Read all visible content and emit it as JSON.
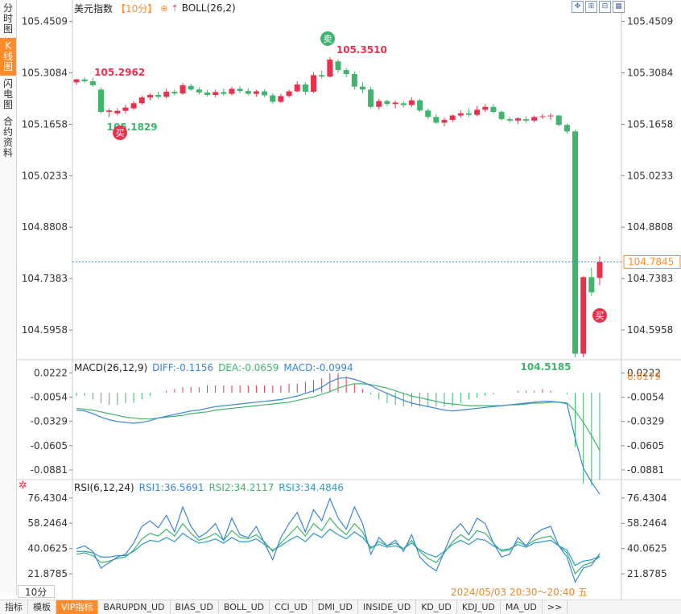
{
  "sidebar": {
    "tabs": [
      {
        "label": "分时图",
        "active": false
      },
      {
        "label": "K线图",
        "active": true
      },
      {
        "label": "闪电图",
        "active": false
      },
      {
        "label": "合约资料",
        "active": false
      }
    ]
  },
  "header": {
    "symbol": "美元指数",
    "period": "【10分】",
    "indicator": "BOLL(26,2)",
    "add_icon": "circle-plus-icon",
    "indicator_icon": "arrow-up-icon",
    "tools": [
      "crosshair-icon",
      "zoom-in-icon",
      "zoom-out-icon",
      "tile-icon"
    ]
  },
  "colors": {
    "up": "#e8324d",
    "down": "#3fb56d",
    "diff": "#3a86d6",
    "dea": "#3fb56d",
    "rsi1": "#3a86d6",
    "rsi2": "#3fb56d",
    "rsi3": "#2a9cc4",
    "accent": "#ff8a2a"
  },
  "price_axis": {
    "ticks": [
      "105.4509",
      "105.3084",
      "105.1658",
      "105.0233",
      "104.8808",
      "104.7383",
      "104.5958"
    ],
    "current": "104.7845"
  },
  "macd": {
    "title": "MACD(26,12,9)",
    "diff": "DIFF:-0.1156",
    "dea": "DEA:-0.0659",
    "macd": "MACD:-0.0994",
    "ticks": [
      "0.0222",
      "-0.0054",
      "-0.0329",
      "-0.0605",
      "-0.0881"
    ],
    "marker": "0.0179"
  },
  "rsi": {
    "title": "RSI(6,12,24)",
    "rsi1": "RSI1:36.5691",
    "rsi2": "RSI2:34.2117",
    "rsi3": "RSI3:34.4846",
    "ticks": [
      "76.4304",
      "58.2464",
      "40.0625",
      "21.8785"
    ],
    "settings_icon": "gear-icon"
  },
  "chart_data": [
    {
      "type": "candlestick",
      "title": "美元指数【10分】",
      "ylim": [
        104.52,
        105.47
      ],
      "annotations": {
        "high_label": "105.3510",
        "low_label": "104.5185",
        "left_high": "105.2962",
        "left_low": "105.1829",
        "buy_badge": "买",
        "sell_badge": "卖"
      },
      "candles": [
        [
          105.282,
          105.292,
          105.275,
          105.29
        ],
        [
          105.29,
          105.296,
          105.28,
          105.285
        ],
        [
          105.285,
          105.295,
          105.27,
          105.274
        ],
        [
          105.262,
          105.268,
          105.196,
          105.2
        ],
        [
          105.2,
          105.21,
          105.185,
          105.204
        ],
        [
          105.196,
          105.21,
          105.19,
          105.203
        ],
        [
          105.203,
          105.22,
          105.195,
          105.212
        ],
        [
          105.21,
          105.23,
          105.205,
          105.224
        ],
        [
          105.224,
          105.245,
          105.22,
          105.24
        ],
        [
          105.24,
          105.252,
          105.232,
          105.247
        ],
        [
          105.247,
          105.256,
          105.236,
          105.242
        ],
        [
          105.242,
          105.264,
          105.238,
          105.256
        ],
        [
          105.256,
          105.262,
          105.246,
          105.251
        ],
        [
          105.251,
          105.28,
          105.248,
          105.274
        ],
        [
          105.272,
          105.278,
          105.258,
          105.262
        ],
        [
          105.262,
          105.268,
          105.248,
          105.254
        ],
        [
          105.254,
          105.262,
          105.242,
          105.247
        ],
        [
          105.247,
          105.262,
          105.24,
          105.255
        ],
        [
          105.255,
          105.265,
          105.245,
          105.25
        ],
        [
          105.25,
          105.27,
          105.246,
          105.264
        ],
        [
          105.264,
          105.272,
          105.252,
          105.258
        ],
        [
          105.258,
          105.266,
          105.246,
          105.25
        ],
        [
          105.25,
          105.262,
          105.242,
          105.257
        ],
        [
          105.257,
          105.263,
          105.241,
          105.246
        ],
        [
          105.246,
          105.252,
          105.222,
          105.228
        ],
        [
          105.228,
          105.25,
          105.224,
          105.244
        ],
        [
          105.244,
          105.262,
          105.24,
          105.257
        ],
        [
          105.257,
          105.285,
          105.254,
          105.276
        ],
        [
          105.276,
          105.282,
          105.248,
          105.256
        ],
        [
          105.256,
          105.31,
          105.252,
          105.302
        ],
        [
          105.302,
          105.315,
          105.292,
          105.298
        ],
        [
          105.298,
          105.352,
          105.295,
          105.345
        ],
        [
          105.34,
          105.345,
          105.308,
          105.316
        ],
        [
          105.316,
          105.322,
          105.296,
          105.305
        ],
        [
          105.305,
          105.312,
          105.262,
          105.27
        ],
        [
          105.27,
          105.282,
          105.252,
          105.262
        ],
        [
          105.262,
          105.27,
          105.21,
          105.214
        ],
        [
          105.214,
          105.236,
          105.206,
          105.23
        ],
        [
          105.23,
          105.234,
          105.216,
          105.222
        ],
        [
          105.222,
          105.232,
          105.21,
          105.226
        ],
        [
          105.224,
          105.23,
          105.212,
          105.219
        ],
        [
          105.219,
          105.24,
          105.214,
          105.232
        ],
        [
          105.232,
          105.236,
          105.2,
          105.204
        ],
        [
          105.204,
          105.21,
          105.18,
          105.186
        ],
        [
          105.186,
          105.194,
          105.166,
          105.17
        ],
        [
          105.17,
          105.184,
          105.16,
          105.178
        ],
        [
          105.178,
          105.194,
          105.172,
          105.19
        ],
        [
          105.19,
          105.204,
          105.184,
          105.196
        ],
        [
          105.196,
          105.21,
          105.186,
          105.192
        ],
        [
          105.192,
          105.216,
          105.188,
          105.206
        ],
        [
          105.206,
          105.222,
          105.2,
          105.214
        ],
        [
          105.214,
          105.222,
          105.196,
          105.2
        ],
        [
          105.2,
          105.204,
          105.176,
          105.18
        ],
        [
          105.18,
          105.186,
          105.17,
          105.176
        ],
        [
          105.176,
          105.186,
          105.166,
          105.182
        ],
        [
          105.18,
          105.188,
          105.17,
          105.176
        ],
        [
          105.176,
          105.19,
          105.17,
          105.186
        ],
        [
          105.186,
          105.194,
          105.18,
          105.188
        ],
        [
          105.188,
          105.196,
          105.178,
          105.19
        ],
        [
          105.19,
          105.192,
          105.16,
          105.164
        ],
        [
          105.164,
          105.168,
          105.14,
          105.146
        ],
        [
          105.146,
          105.15,
          104.52,
          104.53
        ],
        [
          104.53,
          104.745,
          104.52,
          104.742
        ],
        [
          104.742,
          104.768,
          104.69,
          104.7
        ],
        [
          104.74,
          104.8,
          104.72,
          104.784
        ]
      ]
    },
    {
      "type": "line+bar",
      "title": "MACD(26,12,9)",
      "ylim": [
        -0.1,
        0.03
      ],
      "series": [
        {
          "name": "DIFF",
          "values": [
            -0.02,
            -0.021,
            -0.024,
            -0.028,
            -0.031,
            -0.033,
            -0.034,
            -0.035,
            -0.034,
            -0.032,
            -0.029,
            -0.027,
            -0.025,
            -0.023,
            -0.021,
            -0.02,
            -0.018,
            -0.016,
            -0.015,
            -0.014,
            -0.013,
            -0.012,
            -0.011,
            -0.01,
            -0.009,
            -0.008,
            -0.006,
            -0.004,
            -0.001,
            0.002,
            0.006,
            0.012,
            0.016,
            0.017,
            0.015,
            0.012,
            0.008,
            0.003,
            -0.001,
            -0.005,
            -0.009,
            -0.012,
            -0.014,
            -0.016,
            -0.018,
            -0.02,
            -0.021,
            -0.02,
            -0.019,
            -0.018,
            -0.017,
            -0.016,
            -0.015,
            -0.014,
            -0.013,
            -0.012,
            -0.011,
            -0.01,
            -0.01,
            -0.011,
            -0.013,
            -0.052,
            -0.086,
            -0.102,
            -0.1156
          ]
        },
        {
          "name": "DEA",
          "values": [
            -0.018,
            -0.019,
            -0.02,
            -0.022,
            -0.024,
            -0.026,
            -0.028,
            -0.029,
            -0.03,
            -0.03,
            -0.029,
            -0.028,
            -0.027,
            -0.026,
            -0.024,
            -0.023,
            -0.022,
            -0.02,
            -0.019,
            -0.018,
            -0.017,
            -0.016,
            -0.015,
            -0.014,
            -0.013,
            -0.012,
            -0.011,
            -0.009,
            -0.007,
            -0.005,
            -0.002,
            0.001,
            0.005,
            0.008,
            0.01,
            0.01,
            0.009,
            0.007,
            0.005,
            0.002,
            -0.001,
            -0.004,
            -0.006,
            -0.008,
            -0.01,
            -0.012,
            -0.013,
            -0.014,
            -0.015,
            -0.015,
            -0.015,
            -0.015,
            -0.015,
            -0.014,
            -0.014,
            -0.013,
            -0.012,
            -0.012,
            -0.011,
            -0.011,
            -0.012,
            -0.021,
            -0.034,
            -0.049,
            -0.0659
          ]
        },
        {
          "name": "MACD",
          "values": [
            -0.004,
            -0.004,
            -0.008,
            -0.012,
            -0.014,
            -0.014,
            -0.012,
            -0.012,
            -0.008,
            -0.004,
            0.0,
            0.002,
            0.004,
            0.006,
            0.006,
            0.006,
            0.008,
            0.008,
            0.008,
            0.008,
            0.008,
            0.008,
            0.008,
            0.008,
            0.008,
            0.008,
            0.01,
            0.01,
            0.012,
            0.014,
            0.016,
            0.022,
            0.022,
            0.018,
            0.01,
            0.004,
            -0.002,
            -0.008,
            -0.012,
            -0.014,
            -0.016,
            -0.016,
            -0.016,
            -0.016,
            -0.016,
            -0.016,
            -0.016,
            -0.012,
            -0.008,
            -0.006,
            -0.004,
            -0.002,
            0.0,
            0.0,
            0.002,
            0.002,
            0.002,
            0.004,
            0.002,
            0.0,
            -0.002,
            -0.062,
            -0.104,
            -0.106,
            -0.0994
          ]
        }
      ]
    },
    {
      "type": "line",
      "title": "RSI(6,12,24)",
      "ylim": [
        15,
        85
      ],
      "series": [
        {
          "name": "RSI1",
          "values": [
            40,
            42,
            38,
            26,
            30,
            34,
            36,
            44,
            56,
            60,
            55,
            64,
            52,
            70,
            56,
            48,
            52,
            58,
            46,
            62,
            50,
            48,
            56,
            44,
            32,
            48,
            58,
            66,
            52,
            68,
            60,
            76,
            62,
            54,
            70,
            58,
            36,
            48,
            42,
            46,
            38,
            50,
            34,
            28,
            24,
            38,
            52,
            58,
            50,
            62,
            58,
            44,
            34,
            36,
            48,
            42,
            50,
            54,
            56,
            42,
            34,
            16,
            26,
            28,
            36.5691
          ]
        },
        {
          "name": "RSI2",
          "values": [
            36,
            37,
            35,
            30,
            31,
            33,
            34,
            39,
            47,
            51,
            49,
            54,
            49,
            58,
            51,
            46,
            48,
            51,
            46,
            53,
            48,
            47,
            50,
            45,
            38,
            44,
            50,
            56,
            49,
            58,
            53,
            62,
            55,
            50,
            58,
            52,
            40,
            45,
            42,
            44,
            40,
            46,
            38,
            33,
            30,
            37,
            45,
            50,
            46,
            53,
            51,
            44,
            38,
            39,
            45,
            42,
            46,
            48,
            49,
            42,
            37,
            22,
            28,
            30,
            34.2117
          ]
        },
        {
          "name": "RSI3",
          "values": [
            38,
            38,
            37,
            34,
            34,
            35,
            35,
            38,
            43,
            46,
            45,
            48,
            45,
            51,
            47,
            44,
            45,
            47,
            44,
            48,
            45,
            45,
            47,
            43,
            39,
            42,
            46,
            49,
            45,
            51,
            48,
            54,
            50,
            47,
            52,
            48,
            41,
            43,
            41,
            42,
            40,
            44,
            39,
            36,
            34,
            38,
            43,
            46,
            43,
            47,
            46,
            42,
            39,
            40,
            43,
            41,
            44,
            45,
            46,
            42,
            39,
            28,
            31,
            32,
            34.4846
          ]
        }
      ]
    }
  ],
  "bottom": {
    "period_box": "10分",
    "timestamp": "2024/05/03 20:30～20:40 五",
    "tabs": [
      {
        "label": "指标",
        "active": false
      },
      {
        "label": "模板",
        "active": false
      },
      {
        "label": "VIP指标",
        "active": true
      },
      {
        "label": "BARUPDN_UD",
        "active": false
      },
      {
        "label": "BIAS_UD",
        "active": false
      },
      {
        "label": "BOLL_UD",
        "active": false
      },
      {
        "label": "CCI_UD",
        "active": false
      },
      {
        "label": "DMI_UD",
        "active": false
      },
      {
        "label": "INSIDE_UD",
        "active": false
      },
      {
        "label": "KD_UD",
        "active": false
      },
      {
        "label": "KDJ_UD",
        "active": false
      },
      {
        "label": "MA_UD",
        "active": false
      },
      {
        "label": ">>",
        "active": false
      }
    ]
  }
}
